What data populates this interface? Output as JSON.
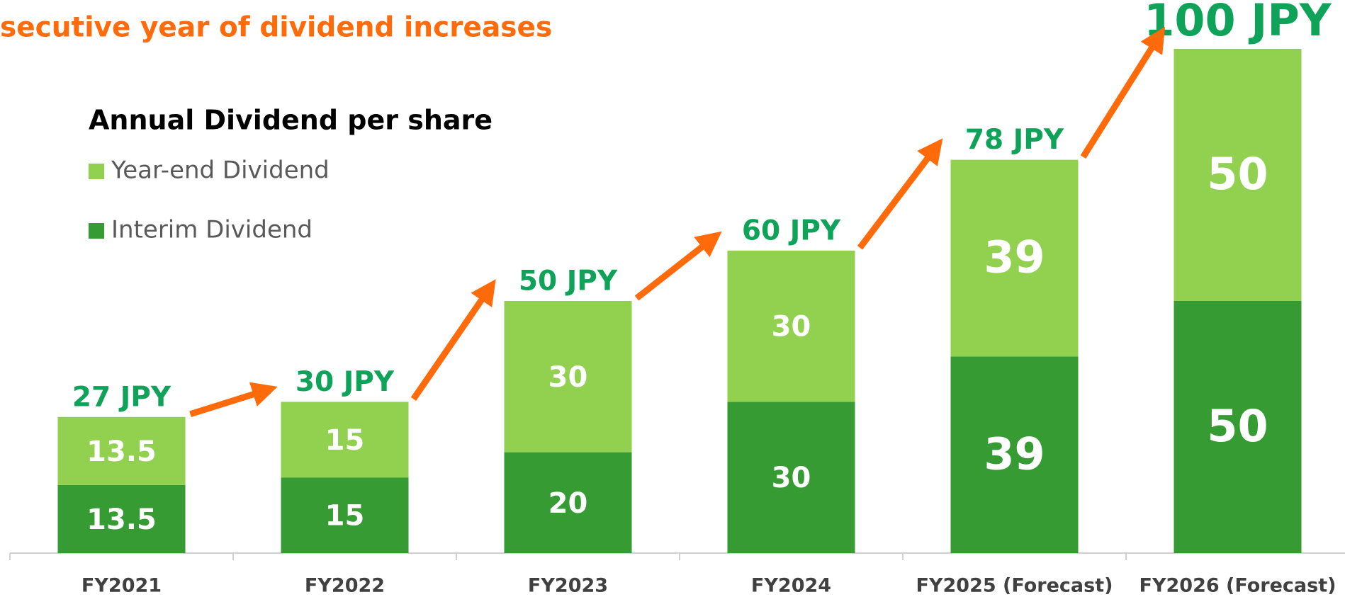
{
  "chart_data": {
    "type": "stacked-bar",
    "title": "secutive year of dividend increases",
    "legend_title": "Annual Dividend per share",
    "categories": [
      "FY2021",
      "FY2022",
      "FY2023",
      "FY2024",
      "FY2025 (Forecast)",
      "FY2026 (Forecast)"
    ],
    "series": [
      {
        "name": "Interim Dividend",
        "color": "#379b34",
        "values": [
          13.5,
          15,
          20,
          30,
          39,
          50
        ]
      },
      {
        "name": "Year-end Dividend",
        "color": "#92d050",
        "values": [
          13.5,
          15,
          30,
          30,
          39,
          50
        ]
      }
    ],
    "totals": {
      "values": [
        27,
        30,
        50,
        60,
        78,
        100
      ],
      "value_labels": [
        "27 JPY",
        "30 JPY",
        "50 JPY",
        "60 JPY",
        "78 JPY",
        "100 JPY"
      ],
      "color": "#0fa35a"
    },
    "ylim": [
      0,
      100
    ]
  }
}
